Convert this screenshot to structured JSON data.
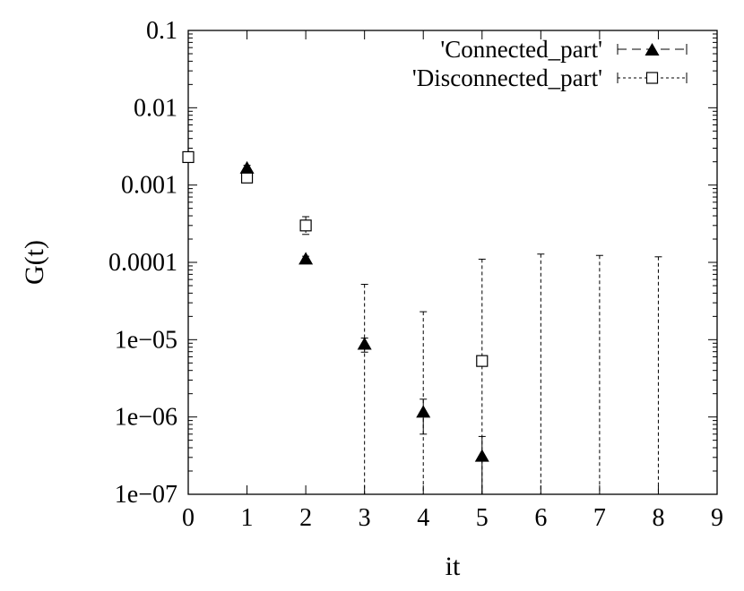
{
  "chart_data": {
    "type": "scatter",
    "xlabel": "it",
    "ylabel": "G(t)",
    "xlim": [
      0,
      9
    ],
    "ylim": [
      1e-07,
      0.1
    ],
    "yscale": "log",
    "x_ticks": [
      0,
      1,
      2,
      3,
      4,
      5,
      6,
      7,
      8,
      9
    ],
    "x_tick_labels": [
      "0",
      "1",
      "2",
      "3",
      "4",
      "5",
      "6",
      "7",
      "8",
      "9"
    ],
    "y_ticks": [
      1e-07,
      1e-06,
      1e-05,
      0.0001,
      0.001,
      0.01,
      0.1
    ],
    "y_tick_labels": [
      "1e−07",
      "1e−06",
      "1e−05",
      "0.0001",
      "0.001",
      "0.01",
      "0.1"
    ],
    "grid": false,
    "legend_position": "top-right",
    "series": [
      {
        "name": "'Connected_part'",
        "marker": "filled-triangle",
        "line_style": "long-dash",
        "x": [
          1,
          2,
          3,
          4,
          5
        ],
        "y": [
          0.00165,
          0.00011,
          8.7e-06,
          1.15e-06,
          3.1e-07
        ],
        "y_err_low": [
          0.0015,
          0.0001,
          6.9e-06,
          6e-07,
          1e-07
        ],
        "y_err_high": [
          0.0018,
          0.00012,
          1.05e-05,
          1.7e-06,
          5.6e-07
        ]
      },
      {
        "name": "'Disconnected_part'",
        "marker": "open-square",
        "line_style": "short-dash",
        "x": [
          0,
          1,
          2,
          3,
          4,
          5,
          6,
          7,
          8
        ],
        "y": [
          0.0023,
          0.00125,
          0.0003,
          null,
          null,
          5.3e-06,
          null,
          null,
          null
        ],
        "y_err_low": [
          0.0021,
          0.0011,
          0.00023,
          1e-07,
          1e-07,
          1e-07,
          1e-07,
          1e-07,
          1e-07
        ],
        "y_err_high": [
          0.0025,
          0.00138,
          0.00039,
          5.2e-05,
          2.3e-05,
          0.00011,
          0.000128,
          0.000123,
          0.000118
        ]
      }
    ]
  }
}
